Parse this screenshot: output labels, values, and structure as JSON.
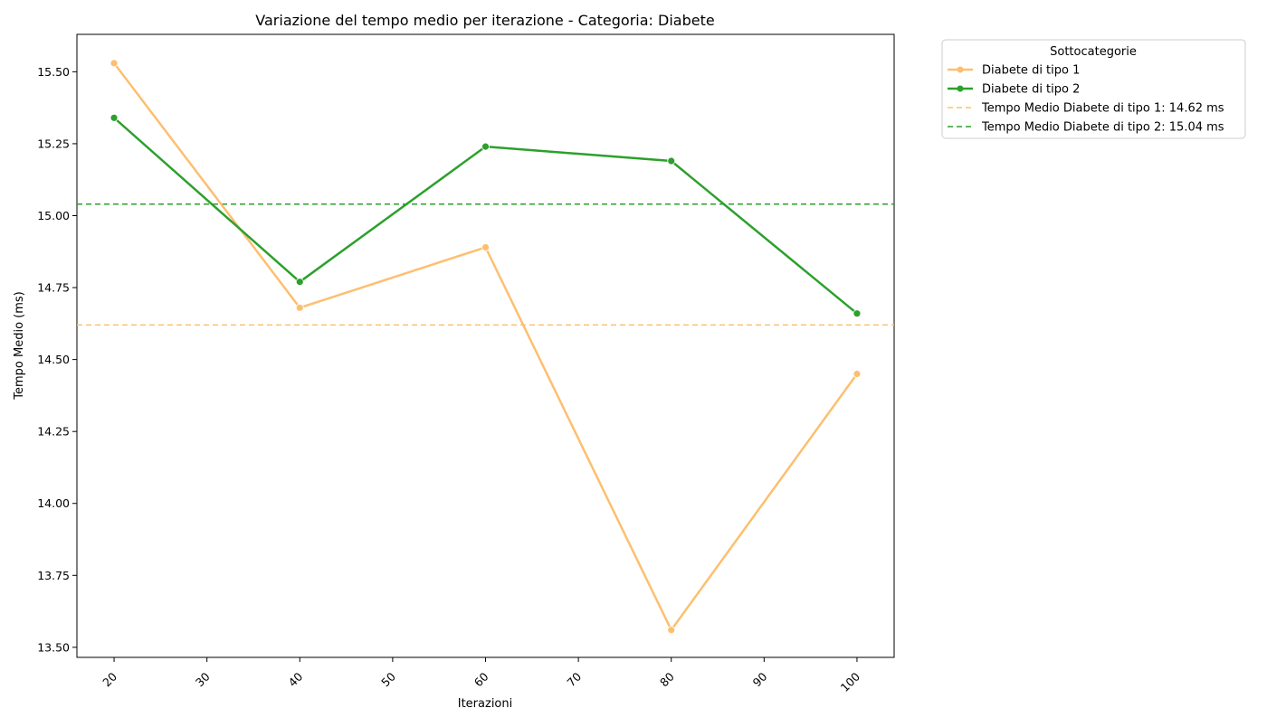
{
  "chart_data": {
    "type": "line",
    "title": "Variazione del tempo medio per iterazione - Categoria: Diabete",
    "xlabel": "Iterazioni",
    "ylabel": "Tempo Medio (ms)",
    "xlim": [
      16,
      104
    ],
    "ylim": [
      13.465,
      15.63
    ],
    "x_ticks": [
      20,
      30,
      40,
      50,
      60,
      70,
      80,
      90,
      100
    ],
    "x_tick_labels": [
      "20",
      "30",
      "40",
      "50",
      "60",
      "70",
      "80",
      "90",
      "100"
    ],
    "y_ticks": [
      13.5,
      13.75,
      14.0,
      14.25,
      14.5,
      14.75,
      15.0,
      15.25,
      15.5
    ],
    "y_tick_labels": [
      "13.50",
      "13.75",
      "14.00",
      "14.25",
      "14.50",
      "14.75",
      "15.00",
      "15.25",
      "15.50"
    ],
    "x_tick_rotation_deg": -45,
    "grid": false,
    "x": [
      20,
      40,
      60,
      80,
      100
    ],
    "series": [
      {
        "name": "Diabete di tipo 1",
        "values": [
          15.53,
          14.68,
          14.89,
          13.56,
          14.45
        ],
        "color": "#fdbf6f"
      },
      {
        "name": "Diabete di tipo 2",
        "values": [
          15.34,
          14.77,
          15.24,
          15.19,
          14.66
        ],
        "color": "#2ca02c"
      }
    ],
    "reference_lines": [
      {
        "label": "Tempo Medio Diabete di tipo 1: 14.62 ms",
        "value": 14.62,
        "color": "#fdbf6f",
        "style": "dashed"
      },
      {
        "label": "Tempo Medio Diabete di tipo 2: 15.04 ms",
        "value": 15.04,
        "color": "#2ca02c",
        "style": "dashed"
      }
    ],
    "legend": {
      "title": "Sottocategorie",
      "placement": "outside-top-right"
    }
  }
}
